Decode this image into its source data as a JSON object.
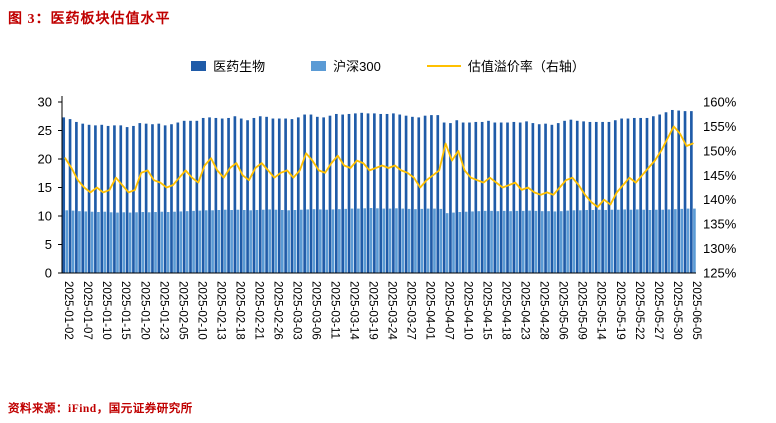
{
  "title": "图 3：医药板块估值水平",
  "source": "资料来源：iFind，国元证券研究所",
  "colors": {
    "title": "#C00000",
    "source": "#C00000",
    "axis": "#000000",
    "pharma_bar": "#1F5BA8",
    "hs300_bar": "#5B9BD5",
    "premium_line": "#FFC000"
  },
  "legend": [
    {
      "label": "医药生物",
      "color": "#1F5BA8",
      "type": "bar"
    },
    {
      "label": "沪深300",
      "color": "#5B9BD5",
      "type": "bar"
    },
    {
      "label": "估值溢价率（右轴）",
      "color": "#FFC000",
      "type": "line"
    }
  ],
  "chart_data": {
    "type": "bar",
    "subtype": "grouped-bars-with-line",
    "title": "医药板块估值水平",
    "legend_position": "top",
    "grid": false,
    "x_tick_every": 3,
    "categories": [
      "2025-01-02",
      "2025-01-03",
      "2025-01-06",
      "2025-01-07",
      "2025-01-08",
      "2025-01-09",
      "2025-01-10",
      "2025-01-13",
      "2025-01-14",
      "2025-01-15",
      "2025-01-16",
      "2025-01-17",
      "2025-01-20",
      "2025-01-21",
      "2025-01-22",
      "2025-01-23",
      "2025-01-24",
      "2025-01-27",
      "2025-02-05",
      "2025-02-06",
      "2025-02-07",
      "2025-02-10",
      "2025-02-11",
      "2025-02-12",
      "2025-02-13",
      "2025-02-14",
      "2025-02-17",
      "2025-02-18",
      "2025-02-19",
      "2025-02-20",
      "2025-02-21",
      "2025-02-24",
      "2025-02-25",
      "2025-02-26",
      "2025-02-27",
      "2025-02-28",
      "2025-03-03",
      "2025-03-04",
      "2025-03-05",
      "2025-03-06",
      "2025-03-07",
      "2025-03-10",
      "2025-03-11",
      "2025-03-12",
      "2025-03-13",
      "2025-03-14",
      "2025-03-17",
      "2025-03-18",
      "2025-03-19",
      "2025-03-20",
      "2025-03-21",
      "2025-03-24",
      "2025-03-25",
      "2025-03-26",
      "2025-03-27",
      "2025-03-28",
      "2025-03-31",
      "2025-04-01",
      "2025-04-02",
      "2025-04-03",
      "2025-04-07",
      "2025-04-08",
      "2025-04-09",
      "2025-04-10",
      "2025-04-11",
      "2025-04-14",
      "2025-04-15",
      "2025-04-16",
      "2025-04-17",
      "2025-04-18",
      "2025-04-21",
      "2025-04-22",
      "2025-04-23",
      "2025-04-24",
      "2025-04-25",
      "2025-04-28",
      "2025-04-29",
      "2025-04-30",
      "2025-05-06",
      "2025-05-07",
      "2025-05-08",
      "2025-05-09",
      "2025-05-12",
      "2025-05-13",
      "2025-05-14",
      "2025-05-15",
      "2025-05-16",
      "2025-05-19",
      "2025-05-20",
      "2025-05-21",
      "2025-05-22",
      "2025-05-23",
      "2025-05-26",
      "2025-05-27",
      "2025-05-28",
      "2025-05-29",
      "2025-05-30",
      "2025-06-03",
      "2025-06-04",
      "2025-06-05"
    ],
    "series": [
      {
        "name": "医药生物",
        "type": "bar",
        "axis": "left",
        "color": "#1F5BA8",
        "values": [
          27.3,
          27.0,
          26.5,
          26.2,
          26.0,
          25.9,
          26.0,
          25.8,
          25.9,
          25.9,
          25.6,
          25.8,
          26.3,
          26.2,
          26.1,
          26.2,
          25.9,
          26.1,
          26.4,
          26.7,
          26.7,
          26.7,
          27.2,
          27.3,
          27.2,
          27.1,
          27.2,
          27.5,
          27.1,
          26.8,
          27.2,
          27.5,
          27.4,
          27.1,
          27.1,
          27.1,
          27.0,
          27.3,
          27.8,
          27.8,
          27.4,
          27.3,
          27.6,
          27.9,
          27.8,
          27.9,
          28.0,
          28.1,
          28.0,
          28.0,
          27.9,
          27.9,
          28.0,
          27.8,
          27.6,
          27.4,
          27.3,
          27.6,
          27.7,
          27.7,
          26.4,
          26.3,
          26.8,
          26.4,
          26.4,
          26.5,
          26.5,
          26.7,
          26.4,
          26.4,
          26.4,
          26.5,
          26.4,
          26.6,
          26.3,
          26.1,
          26.2,
          26.0,
          26.3,
          26.7,
          26.9,
          26.7,
          26.6,
          26.5,
          26.5,
          26.5,
          26.5,
          26.8,
          27.1,
          27.1,
          27.2,
          27.2,
          27.2,
          27.5,
          27.8,
          28.2,
          28.6,
          28.5,
          28.4,
          28.4
        ]
      },
      {
        "name": "沪深300",
        "type": "bar",
        "axis": "left",
        "color": "#5B9BD5",
        "values": [
          11.0,
          10.95,
          10.85,
          10.8,
          10.75,
          10.7,
          10.75,
          10.65,
          10.6,
          10.65,
          10.6,
          10.65,
          10.7,
          10.65,
          10.7,
          10.75,
          10.7,
          10.75,
          10.8,
          10.85,
          10.9,
          10.95,
          11.0,
          11.0,
          11.05,
          11.1,
          11.05,
          11.1,
          11.05,
          11.0,
          11.05,
          11.1,
          11.15,
          11.1,
          11.05,
          11.0,
          11.05,
          11.1,
          11.15,
          11.2,
          11.15,
          11.1,
          11.15,
          11.2,
          11.25,
          11.3,
          11.3,
          11.35,
          11.4,
          11.35,
          11.3,
          11.3,
          11.35,
          11.3,
          11.25,
          11.2,
          11.25,
          11.3,
          11.3,
          11.25,
          10.5,
          10.6,
          10.7,
          10.75,
          10.8,
          10.85,
          10.9,
          10.9,
          10.85,
          10.9,
          10.85,
          10.9,
          10.9,
          10.95,
          10.9,
          10.85,
          10.85,
          10.8,
          10.85,
          10.95,
          11.0,
          11.0,
          11.05,
          11.05,
          11.1,
          11.05,
          11.1,
          11.1,
          11.15,
          11.1,
          11.15,
          11.1,
          11.05,
          11.1,
          11.1,
          11.15,
          11.2,
          11.25,
          11.3,
          11.3
        ]
      },
      {
        "name": "估值溢价率（右轴）",
        "type": "line",
        "axis": "right",
        "color": "#FFC000",
        "values": [
          148.5,
          146.5,
          144.0,
          142.5,
          141.5,
          142.5,
          141.5,
          142.0,
          144.5,
          143.0,
          141.5,
          142.0,
          145.5,
          146.0,
          144.0,
          143.5,
          142.5,
          143.0,
          144.5,
          146.0,
          144.5,
          143.5,
          147.0,
          148.5,
          146.0,
          144.5,
          146.5,
          147.5,
          145.0,
          144.0,
          146.5,
          147.5,
          146.0,
          144.5,
          145.5,
          146.0,
          144.5,
          146.0,
          149.5,
          148.0,
          146.0,
          145.5,
          147.5,
          149.0,
          147.0,
          146.5,
          148.0,
          147.5,
          146.0,
          146.5,
          147.0,
          146.5,
          147.0,
          146.0,
          145.5,
          144.5,
          142.5,
          144.0,
          145.0,
          146.0,
          151.5,
          148.0,
          150.0,
          146.0,
          144.5,
          144.0,
          143.5,
          144.5,
          143.5,
          142.5,
          143.0,
          143.5,
          142.0,
          142.5,
          141.5,
          141.0,
          141.5,
          141.0,
          142.5,
          144.0,
          144.5,
          143.0,
          141.0,
          139.5,
          138.5,
          140.0,
          139.0,
          141.5,
          143.0,
          144.5,
          143.5,
          145.0,
          146.5,
          148.0,
          150.0,
          152.5,
          155.0,
          153.5,
          151.0,
          151.5
        ]
      }
    ],
    "left_axis": {
      "min": 0,
      "max": 30,
      "step": 5,
      "ticks": [
        "0",
        "5",
        "10",
        "15",
        "20",
        "25",
        "30"
      ]
    },
    "right_axis": {
      "min": 125,
      "max": 160,
      "step": 5,
      "ticks": [
        "125%",
        "130%",
        "135%",
        "140%",
        "145%",
        "150%",
        "155%",
        "160%"
      ]
    }
  }
}
